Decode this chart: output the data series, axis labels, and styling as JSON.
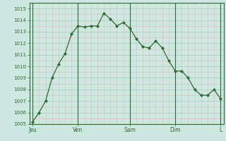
{
  "background_color": "#cce8e0",
  "plot_bg_color": "#cce8e0",
  "line_color": "#2d6a2d",
  "marker_color": "#2d6a2d",
  "grid_color_major_x": "#aad4c8",
  "grid_color_major_y": "#aad4c8",
  "grid_color_minor_x": "#e8b4b4",
  "grid_color_minor_y": "#e8b4b4",
  "ylim": [
    1005,
    1015.5
  ],
  "yticks": [
    1005,
    1006,
    1007,
    1008,
    1009,
    1010,
    1011,
    1012,
    1013,
    1014,
    1015
  ],
  "y_values": [
    1005.2,
    1006.0,
    1007.0,
    1009.0,
    1010.2,
    1011.1,
    1012.8,
    1013.5,
    1013.4,
    1013.5,
    1013.5,
    1014.6,
    1014.1,
    1013.5,
    1013.8,
    1013.3,
    1012.4,
    1011.7,
    1011.6,
    1012.2,
    1011.6,
    1010.5,
    1009.6,
    1009.6,
    1009.0,
    1008.0,
    1007.5,
    1007.5,
    1008.0,
    1007.2
  ],
  "day_positions": [
    0,
    7,
    15,
    22,
    29
  ],
  "day_labels": [
    "Jeu",
    "Ven",
    "Sam",
    "Dim",
    "L"
  ],
  "day_line_positions": [
    0,
    7,
    15,
    22,
    29
  ],
  "xlim": [
    -0.5,
    29.5
  ]
}
